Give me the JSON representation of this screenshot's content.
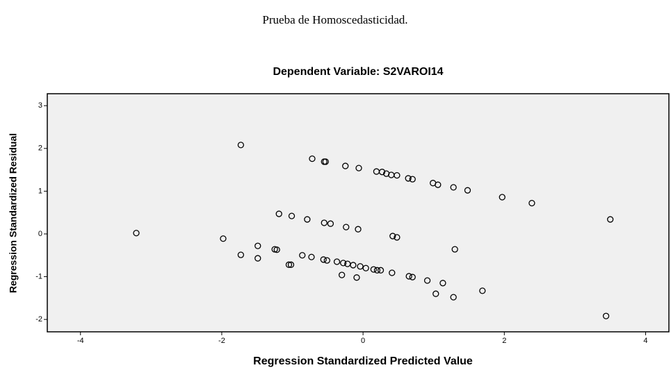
{
  "page_title": "Prueba de Homoscedasticidad.",
  "chart_data": {
    "type": "scatter",
    "title": "Dependent Variable: S2VAROI14",
    "xlabel": "Regression Standardized Predicted Value",
    "ylabel": "Regression Standardized Residual",
    "color": "#000000",
    "xlim": [
      -4.47,
      4.33
    ],
    "ylim": [
      -2.29,
      3.28
    ],
    "xticks": [
      -4,
      -2,
      0,
      2,
      4
    ],
    "yticks": [
      -2,
      -1,
      0,
      1,
      2,
      3
    ],
    "x": [
      -3.21,
      -1.73,
      -0.72,
      -0.55,
      -0.53,
      -0.25,
      -0.06,
      0.19,
      0.27,
      0.33,
      0.4,
      0.48,
      0.64,
      0.7,
      0.99,
      1.06,
      1.28,
      1.48,
      1.97,
      2.39,
      3.5,
      -1.19,
      -1.01,
      -0.79,
      -0.55,
      -0.46,
      -0.24,
      -0.07,
      0.42,
      0.48,
      1.3,
      -1.98,
      -1.49,
      -1.73,
      -1.49,
      -1.25,
      -1.22,
      -1.05,
      -1.02,
      -0.86,
      -0.73,
      -0.56,
      -0.51,
      -0.37,
      -0.28,
      -0.22,
      -0.14,
      -0.04,
      0.04,
      0.15,
      0.2,
      0.25,
      0.41,
      0.65,
      0.7,
      0.91,
      1.13,
      -0.3,
      -0.09,
      1.03,
      1.28,
      1.69,
      3.44
    ],
    "values": [
      0.02,
      2.08,
      1.76,
      1.69,
      1.69,
      1.59,
      1.54,
      1.46,
      1.45,
      1.41,
      1.38,
      1.37,
      1.3,
      1.28,
      1.19,
      1.15,
      1.09,
      1.02,
      0.86,
      0.72,
      0.34,
      0.47,
      0.42,
      0.34,
      0.26,
      0.24,
      0.16,
      0.11,
      -0.05,
      -0.08,
      -0.36,
      -0.11,
      -0.28,
      -0.49,
      -0.57,
      -0.36,
      -0.37,
      -0.72,
      -0.72,
      -0.5,
      -0.54,
      -0.6,
      -0.62,
      -0.65,
      -0.68,
      -0.7,
      -0.73,
      -0.76,
      -0.8,
      -0.83,
      -0.85,
      -0.85,
      -0.91,
      -0.99,
      -1.01,
      -1.09,
      -1.15,
      -0.96,
      -1.02,
      -1.4,
      -1.48,
      -1.33,
      -1.92
    ]
  }
}
